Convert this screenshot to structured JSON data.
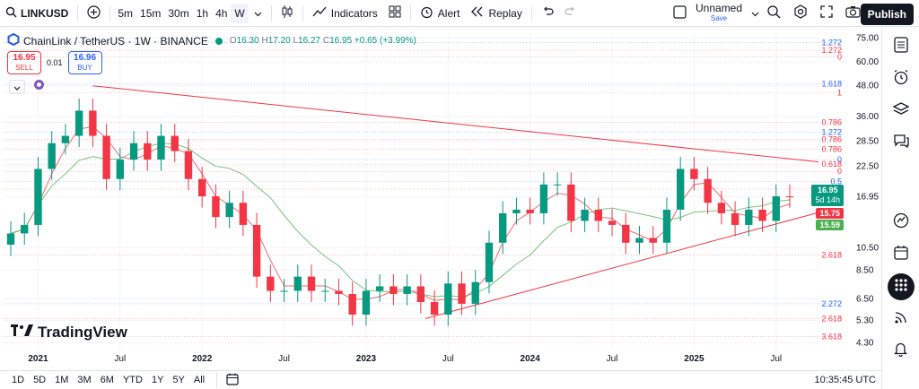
{
  "toolbar": {
    "symbol": "LINKUSD",
    "intervals": [
      "5m",
      "15m",
      "30m",
      "1h",
      "4h",
      "W"
    ],
    "active_interval": "W",
    "indicators_label": "Indicators",
    "alert_label": "Alert",
    "replay_label": "Replay",
    "layout_name": "Unnamed",
    "layout_status": "Save",
    "publish_label": "Publish"
  },
  "legend": {
    "title": "ChainLink / TetherUS · 1W · BINANCE",
    "o_label": "O",
    "o": "16.30",
    "h_label": "H",
    "h": "17.20",
    "l_label": "L",
    "l": "16.27",
    "c_label": "C",
    "c": "16.95",
    "change": "+0.65 (+3.99%)"
  },
  "trade": {
    "sell_price": "16.95",
    "sell_label": "SELL",
    "spread": "0.01",
    "buy_price": "16.96",
    "buy_label": "BUY"
  },
  "price_tags": {
    "last": "16.95",
    "countdown": "5d 14h",
    "ma1": "15.75",
    "ma2": "15.59"
  },
  "y_ticks": [
    "75.00",
    "60.00",
    "48.00",
    "36.00",
    "28.50",
    "22.50",
    "16.95",
    "10.50",
    "8.50",
    "6.50",
    "5.30",
    "4.30"
  ],
  "fib_labels": [
    "1.272",
    "1.272",
    "0",
    "1.618",
    "1",
    "0.786",
    "1.272",
    "0.786",
    "0.786",
    "0",
    "0.618",
    "0",
    "0.5",
    "0.618",
    "2.618",
    "2.272",
    "2.618",
    "3.618"
  ],
  "x_ticks": [
    "2021",
    "Jul",
    "2022",
    "Jul",
    "2023",
    "Jul",
    "2024",
    "Jul",
    "2025",
    "Jul"
  ],
  "ranges": [
    "1D",
    "5D",
    "1M",
    "3M",
    "6M",
    "YTD",
    "1Y",
    "5Y",
    "All"
  ],
  "clock": "10:35:45 UTC",
  "brand": "TradingView",
  "colors": {
    "up": "#089981",
    "down": "#f23645",
    "ma_red": "#f23645",
    "ma_green": "#4caf50",
    "trend": "#f23645",
    "accent": "#2962ff"
  },
  "chart_data": {
    "type": "candlestick",
    "x": [
      "2020-11",
      "2020-12",
      "2021-01",
      "2021-02",
      "2021-03",
      "2021-04",
      "2021-05",
      "2021-06",
      "2021-07",
      "2021-08",
      "2021-09",
      "2021-10",
      "2021-11",
      "2021-12",
      "2022-01",
      "2022-02",
      "2022-03",
      "2022-04",
      "2022-05",
      "2022-06",
      "2022-07",
      "2022-08",
      "2022-09",
      "2022-10",
      "2022-11",
      "2022-12",
      "2023-01",
      "2023-02",
      "2023-03",
      "2023-04",
      "2023-05",
      "2023-06",
      "2023-07",
      "2023-08",
      "2023-09",
      "2023-10",
      "2023-11",
      "2023-12",
      "2024-01",
      "2024-02",
      "2024-03",
      "2024-04",
      "2024-05",
      "2024-06",
      "2024-07",
      "2024-08",
      "2024-09",
      "2024-10",
      "2024-11",
      "2024-12",
      "2025-01",
      "2025-02",
      "2025-03",
      "2025-04",
      "2025-05",
      "2025-06",
      "2025-07",
      "2025-08"
    ],
    "close": [
      12,
      13,
      22,
      28,
      30,
      38,
      30,
      20,
      24,
      28,
      24,
      30,
      26,
      20,
      17,
      14,
      16,
      13,
      8,
      7,
      7,
      8,
      7,
      7,
      6.8,
      5.6,
      7,
      7.3,
      6.8,
      7.3,
      6.3,
      5.6,
      7.5,
      6.2,
      7.6,
      11,
      14.5,
      15,
      14.5,
      19,
      19,
      13.5,
      15,
      13.5,
      13,
      11,
      11.5,
      11,
      15,
      22,
      20,
      16,
      14.5,
      13,
      15,
      13.5,
      17,
      16.95
    ],
    "ylim": [
      4,
      80
    ],
    "yscale": "log"
  }
}
